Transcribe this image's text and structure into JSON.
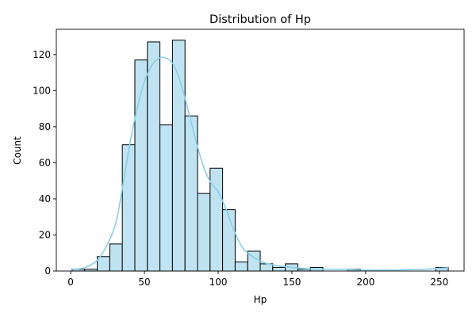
{
  "chart_data": {
    "type": "bar",
    "title": "Distribution of Hp",
    "xlabel": "Hp",
    "ylabel": "Count",
    "xlim": [
      -9.75,
      266.75
    ],
    "ylim": [
      0,
      134
    ],
    "xticks": [
      0,
      50,
      100,
      150,
      200,
      250
    ],
    "yticks": [
      0,
      20,
      40,
      60,
      80,
      100,
      120
    ],
    "grid": false,
    "bin_width": 8.5,
    "bins": [
      {
        "x0": 1.0,
        "x1": 9.5,
        "count": 1
      },
      {
        "x0": 9.5,
        "x1": 18.0,
        "count": 1
      },
      {
        "x0": 18.0,
        "x1": 26.5,
        "count": 8
      },
      {
        "x0": 26.5,
        "x1": 35.0,
        "count": 15
      },
      {
        "x0": 35.0,
        "x1": 43.5,
        "count": 70
      },
      {
        "x0": 43.5,
        "x1": 52.0,
        "count": 117
      },
      {
        "x0": 52.0,
        "x1": 60.5,
        "count": 127
      },
      {
        "x0": 60.5,
        "x1": 69.0,
        "count": 81
      },
      {
        "x0": 69.0,
        "x1": 77.5,
        "count": 128
      },
      {
        "x0": 77.5,
        "x1": 86.0,
        "count": 86
      },
      {
        "x0": 86.0,
        "x1": 94.5,
        "count": 43
      },
      {
        "x0": 94.5,
        "x1": 103.0,
        "count": 57
      },
      {
        "x0": 103.0,
        "x1": 111.5,
        "count": 34
      },
      {
        "x0": 111.5,
        "x1": 120.0,
        "count": 5
      },
      {
        "x0": 120.0,
        "x1": 128.5,
        "count": 11
      },
      {
        "x0": 128.5,
        "x1": 137.0,
        "count": 4
      },
      {
        "x0": 137.0,
        "x1": 145.5,
        "count": 2
      },
      {
        "x0": 145.5,
        "x1": 154.0,
        "count": 4
      },
      {
        "x0": 154.0,
        "x1": 162.5,
        "count": 1
      },
      {
        "x0": 162.5,
        "x1": 171.0,
        "count": 2
      },
      {
        "x0": 188.0,
        "x1": 196.5,
        "count": 1
      },
      {
        "x0": 247.5,
        "x1": 256.0,
        "count": 2
      }
    ],
    "kde": {
      "color": "#87ceeb",
      "x": [
        1,
        10,
        20,
        30,
        35,
        40,
        45,
        50,
        55,
        60,
        65,
        70,
        75,
        80,
        85,
        90,
        95,
        100,
        105,
        110,
        115,
        120,
        130,
        140,
        150,
        160,
        170,
        180,
        190,
        200,
        210,
        220,
        230,
        240,
        250,
        256
      ],
      "y": [
        1,
        2,
        8,
        25,
        46,
        70,
        90,
        105,
        114,
        118,
        118,
        114,
        103,
        88,
        72,
        58,
        49,
        44,
        35,
        24,
        15,
        10,
        5,
        3,
        2,
        1.3,
        1,
        1,
        0.8,
        0.5,
        0.4,
        0.5,
        0.8,
        1,
        1.5,
        1.8
      ]
    },
    "colors": {
      "bar_fill": "#bfe3f0",
      "bar_edge": "#000000",
      "kde_line": "#87ceeb"
    }
  }
}
